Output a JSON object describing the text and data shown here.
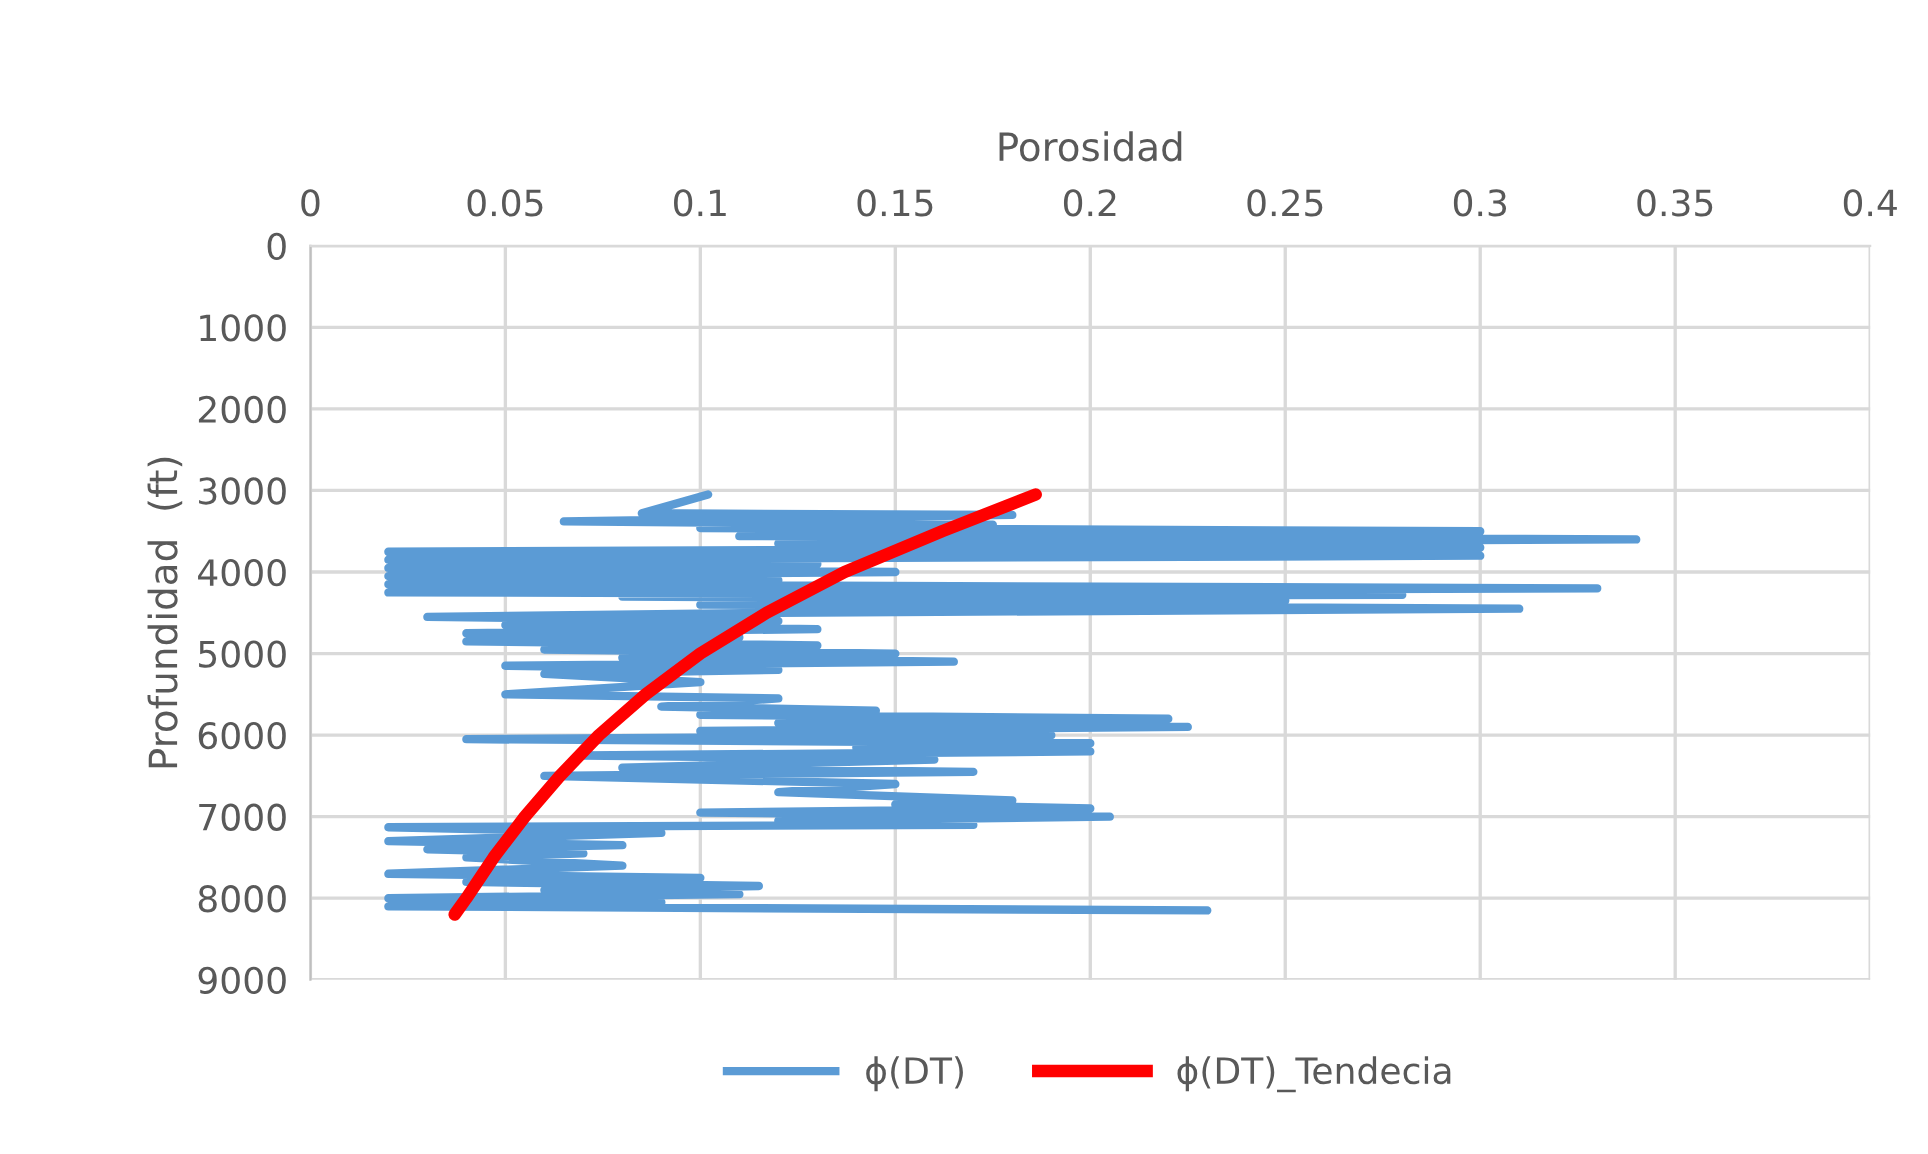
{
  "chart_data": {
    "type": "line",
    "xlabel": "Porosidad",
    "ylabel": "Profundidad  (ft)",
    "xlim": [
      0,
      0.4
    ],
    "xticks": [
      0,
      0.05,
      0.1,
      0.15,
      0.2,
      0.25,
      0.3,
      0.35,
      0.4
    ],
    "ylim": [
      9000,
      0
    ],
    "yticks": [
      0,
      1000,
      2000,
      3000,
      4000,
      5000,
      6000,
      7000,
      8000,
      9000
    ],
    "grid": true,
    "legend": "bottom",
    "marker": "none",
    "line_style": "solid",
    "series": [
      {
        "name": "ϕ(DT)",
        "color": "#5b9bd5",
        "x": [
          0.102,
          0.085,
          0.18,
          0.065,
          0.175,
          0.1,
          0.3,
          0.11,
          0.34,
          0.12,
          0.3,
          0.02,
          0.3,
          0.02,
          0.13,
          0.02,
          0.15,
          0.02,
          0.12,
          0.02,
          0.33,
          0.02,
          0.28,
          0.08,
          0.25,
          0.1,
          0.31,
          0.12,
          0.03,
          0.12,
          0.05,
          0.13,
          0.04,
          0.11,
          0.04,
          0.13,
          0.06,
          0.15,
          0.08,
          0.165,
          0.05,
          0.12,
          0.06,
          0.1,
          0.05,
          0.12,
          0.09,
          0.145,
          0.1,
          0.22,
          0.12,
          0.225,
          0.1,
          0.19,
          0.04,
          0.2,
          0.14,
          0.2,
          0.07,
          0.16,
          0.08,
          0.17,
          0.06,
          0.15,
          0.12,
          0.18,
          0.15,
          0.2,
          0.1,
          0.205,
          0.12,
          0.17,
          0.02,
          0.09,
          0.02,
          0.08,
          0.03,
          0.07,
          0.04,
          0.08,
          0.02,
          0.1,
          0.04,
          0.115,
          0.06,
          0.11,
          0.02,
          0.09,
          0.02,
          0.23
        ],
        "values": [
          3050,
          3280,
          3300,
          3380,
          3420,
          3460,
          3500,
          3560,
          3600,
          3650,
          3700,
          3750,
          3800,
          3850,
          3900,
          3950,
          4000,
          4050,
          4100,
          4150,
          4200,
          4250,
          4280,
          4300,
          4350,
          4400,
          4450,
          4500,
          4550,
          4600,
          4650,
          4700,
          4750,
          4800,
          4850,
          4900,
          4950,
          5000,
          5050,
          5100,
          5150,
          5200,
          5250,
          5350,
          5500,
          5550,
          5650,
          5700,
          5750,
          5800,
          5850,
          5900,
          5950,
          6000,
          6050,
          6100,
          6150,
          6200,
          6250,
          6300,
          6400,
          6450,
          6500,
          6600,
          6700,
          6800,
          6850,
          6900,
          6950,
          7000,
          7050,
          7100,
          7130,
          7200,
          7300,
          7350,
          7400,
          7450,
          7500,
          7600,
          7700,
          7750,
          7800,
          7850,
          7900,
          7950,
          8000,
          8050,
          8100,
          8150
        ]
      },
      {
        "name": "ϕ(DT)_Tendecia",
        "color": "#ff0000",
        "x": [
          0.186,
          0.162,
          0.137,
          0.117,
          0.1,
          0.086,
          0.074,
          0.064,
          0.055,
          0.047,
          0.04,
          0.037
        ],
        "values": [
          3050,
          3500,
          4000,
          4500,
          5000,
          5500,
          6000,
          6500,
          7000,
          7500,
          8000,
          8200
        ]
      }
    ]
  }
}
